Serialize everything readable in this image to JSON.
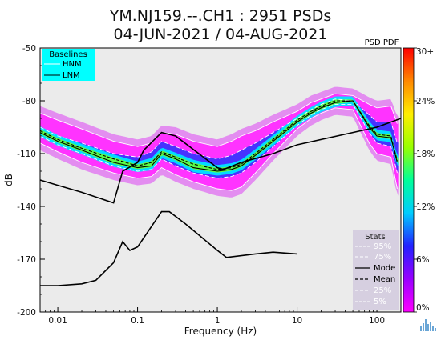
{
  "chart_data": {
    "type": "heatmap",
    "title_line1": "YM.NJ159.--.CH1 : 2951 PSDs",
    "title_line2": "04-JUN-2021 / 04-AUG-2021",
    "xlabel": "Frequency (Hz)",
    "ylabel": "dB",
    "x_scale": "log",
    "xlim": [
      0.006,
      200
    ],
    "ylim": [
      -200,
      -50
    ],
    "x_ticks": [
      {
        "v": 0.01,
        "label": "0.01"
      },
      {
        "v": 0.1,
        "label": "0.1"
      },
      {
        "v": 1,
        "label": "1"
      },
      {
        "v": 10,
        "label": "10"
      },
      {
        "v": 100,
        "label": "100"
      }
    ],
    "y_ticks": [
      {
        "v": -50,
        "label": "-50"
      },
      {
        "v": -80,
        "label": "-80"
      },
      {
        "v": -110,
        "label": "-110"
      },
      {
        "v": -140,
        "label": "-140"
      },
      {
        "v": -170,
        "label": "-170"
      },
      {
        "v": -200,
        "label": "-200"
      }
    ],
    "colorbar": {
      "title": "PSD PDF",
      "ticks": [
        {
          "v": 30,
          "label": "30+"
        },
        {
          "v": 24,
          "label": "24%"
        },
        {
          "v": 18,
          "label": "18%"
        },
        {
          "v": 12,
          "label": "12%"
        },
        {
          "v": 6,
          "label": "6%"
        },
        {
          "v": 0,
          "label": "0%"
        }
      ],
      "range": [
        0,
        30
      ],
      "colors": [
        "#ff00ff",
        "#9900ff",
        "#2222ff",
        "#00ccff",
        "#00ff99",
        "#99ff00",
        "#ffee00",
        "#ff8800",
        "#ff0000"
      ]
    },
    "baselines": {
      "title": "Baselines",
      "entries": [
        "HNM",
        "LNM"
      ],
      "bg_color": "#00ffff",
      "HNM": {
        "x": [
          0.006,
          0.01,
          0.02,
          0.05,
          0.065,
          0.1,
          0.12,
          0.2,
          0.3,
          1.0,
          1.2,
          2,
          5,
          10,
          100,
          200
        ],
        "y": [
          -125,
          -128,
          -132,
          -138,
          -120,
          -115,
          -108,
          -98,
          -100,
          -118,
          -119,
          -115,
          -110,
          -105,
          -95,
          -90
        ]
      },
      "LNM": {
        "x": [
          0.006,
          0.01,
          0.02,
          0.03,
          0.05,
          0.065,
          0.08,
          0.1,
          0.2,
          0.25,
          0.4,
          1.0,
          1.3,
          3,
          5,
          10
        ],
        "y": [
          -185,
          -185,
          -184,
          -182,
          -172,
          -160,
          -165,
          -163,
          -143,
          -143,
          -150,
          -165,
          -169,
          -167,
          -166,
          -167
        ]
      }
    },
    "stats": {
      "title": "Stats",
      "entries": [
        "95%",
        "75%",
        "Mode",
        "Mean",
        "25%",
        "5%"
      ]
    },
    "series": [
      {
        "name": "95%",
        "x": [
          0.006,
          0.01,
          0.02,
          0.05,
          0.1,
          0.15,
          0.2,
          0.3,
          0.5,
          1,
          1.5,
          2,
          3,
          5,
          10,
          15,
          20,
          30,
          50,
          80,
          100,
          150,
          180
        ],
        "y": [
          -87,
          -91,
          -96,
          -103,
          -106,
          -104,
          -98,
          -99,
          -103,
          -106,
          -103,
          -100,
          -97,
          -92,
          -86,
          -81,
          -79,
          -76,
          -77,
          -82,
          -84,
          -83,
          -93
        ]
      },
      {
        "name": "75%",
        "x": [
          0.006,
          0.01,
          0.02,
          0.05,
          0.1,
          0.15,
          0.2,
          0.3,
          0.5,
          1,
          1.5,
          2,
          3,
          5,
          10,
          15,
          20,
          30,
          50,
          80,
          100,
          150,
          180
        ],
        "y": [
          -95,
          -100,
          -104,
          -110,
          -112,
          -109,
          -103,
          -106,
          -110,
          -113,
          -111,
          -108,
          -104,
          -98,
          -90,
          -85,
          -82,
          -79,
          -80,
          -88,
          -92,
          -92,
          -104
        ]
      },
      {
        "name": "Mode",
        "x": [
          0.006,
          0.01,
          0.02,
          0.05,
          0.1,
          0.15,
          0.2,
          0.3,
          0.5,
          1,
          1.5,
          2,
          3,
          5,
          10,
          15,
          20,
          30,
          50,
          80,
          100,
          150,
          180
        ],
        "y": [
          -98,
          -103,
          -108,
          -115,
          -118,
          -117,
          -110,
          -113,
          -118,
          -120,
          -119,
          -117,
          -111,
          -103,
          -92,
          -87,
          -84,
          -81,
          -80,
          -95,
          -100,
          -101,
          -115
        ]
      },
      {
        "name": "Mean",
        "x": [
          0.006,
          0.01,
          0.02,
          0.05,
          0.1,
          0.15,
          0.2,
          0.3,
          0.5,
          1,
          1.5,
          2,
          3,
          5,
          10,
          15,
          20,
          30,
          50,
          80,
          100,
          150,
          180
        ],
        "y": [
          -97,
          -102,
          -107,
          -113,
          -117,
          -115,
          -109,
          -112,
          -116,
          -119,
          -118,
          -116,
          -110,
          -102,
          -91,
          -86,
          -83,
          -80,
          -80,
          -94,
          -99,
          -100,
          -114
        ]
      },
      {
        "name": "25%",
        "x": [
          0.006,
          0.01,
          0.02,
          0.05,
          0.1,
          0.15,
          0.2,
          0.3,
          0.5,
          1,
          1.5,
          2,
          3,
          5,
          10,
          15,
          20,
          30,
          50,
          80,
          100,
          150,
          180
        ],
        "y": [
          -100,
          -105,
          -110,
          -117,
          -120,
          -119,
          -113,
          -117,
          -121,
          -124,
          -123,
          -121,
          -115,
          -106,
          -94,
          -88,
          -85,
          -82,
          -82,
          -98,
          -104,
          -106,
          -121
        ]
      },
      {
        "name": "5%",
        "x": [
          0.006,
          0.01,
          0.02,
          0.05,
          0.1,
          0.15,
          0.2,
          0.3,
          0.5,
          1,
          1.5,
          2,
          3,
          5,
          10,
          15,
          20,
          30,
          50,
          80,
          100,
          150,
          180
        ],
        "y": [
          -104,
          -109,
          -115,
          -121,
          -124,
          -123,
          -118,
          -122,
          -126,
          -130,
          -131,
          -129,
          -121,
          -110,
          -96,
          -90,
          -87,
          -84,
          -85,
          -104,
          -110,
          -112,
          -130
        ]
      }
    ]
  },
  "logo": {
    "name": "iris-logo-icon"
  }
}
